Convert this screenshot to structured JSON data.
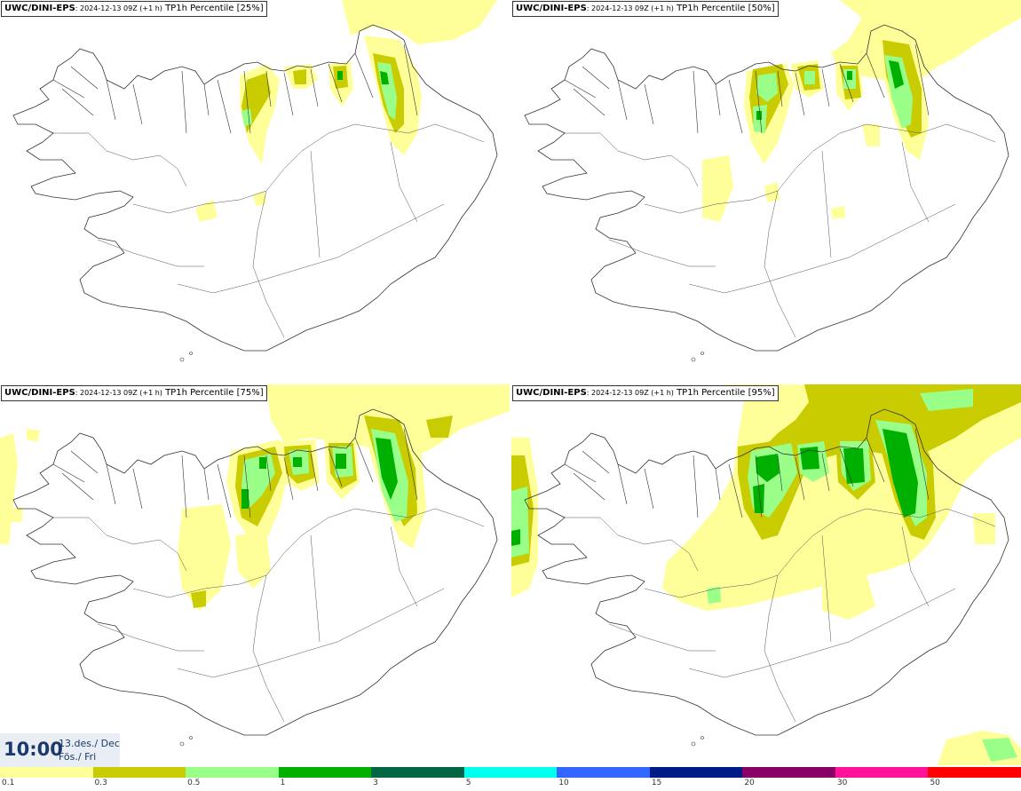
{
  "panels": [
    {
      "model": "UWC/DINI-EPS",
      "run": ": 2024-12-13 09Z (+1 h)",
      "param": "TP1h Percentile [25%]"
    },
    {
      "model": "UWC/DINI-EPS",
      "run": ": 2024-12-13 09Z (+1 h)",
      "param": "TP1h Percentile [50%]"
    },
    {
      "model": "UWC/DINI-EPS",
      "run": ": 2024-12-13 09Z (+1 h)",
      "param": "TP1h Percentile [75%]"
    },
    {
      "model": "UWC/DINI-EPS",
      "run": ": 2024-12-13 09Z (+1 h)",
      "param": "TP1h Percentile [95%]"
    }
  ],
  "valid_time": {
    "time": "10:00",
    "date_line1": "13.des./ Dec",
    "date_line2": "Fös./ Fri"
  },
  "legend": {
    "colors": [
      "#ffff99",
      "#c8cc00",
      "#99ff88",
      "#00b000",
      "#006644",
      "#00ffee",
      "#3366ff",
      "#001a88",
      "#880066",
      "#ff1199",
      "#ff0000"
    ],
    "ticks": [
      "0.1",
      "0.3",
      "0.5",
      "1",
      "3",
      "5",
      "10",
      "15",
      "20",
      "30",
      "50"
    ]
  },
  "colors": {
    "light": "#ffff99",
    "olive": "#c8cc00",
    "lightgreen": "#99ff88",
    "green": "#00b000",
    "coast": "#333333"
  }
}
